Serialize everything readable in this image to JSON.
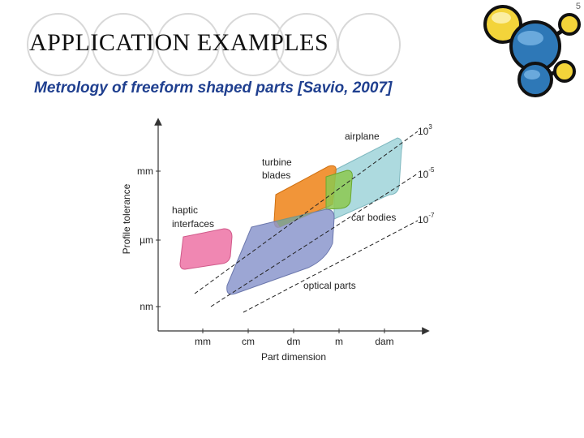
{
  "slide": {
    "number": "5",
    "title": "APPLICATION EXAMPLES",
    "subtitle": "Metrology of freeform shaped parts [Savio, 2007]"
  },
  "figure": {
    "ylabel": "Profile tolerance",
    "xlabel": "Part dimension",
    "yticks": [
      "mm",
      "µm",
      "nm"
    ],
    "xticks": [
      "mm",
      "cm",
      "dm",
      "m",
      "dam"
    ],
    "lines": [
      {
        "base": "10",
        "exp": "3"
      },
      {
        "base": "10",
        "exp": "-5"
      },
      {
        "base": "10",
        "exp": "-7"
      }
    ],
    "regions": [
      {
        "name": "airplane",
        "label": "airplane",
        "color": "#9fd3d9"
      },
      {
        "name": "turbine-blades",
        "label_line1": "turbine",
        "label_line2": "blades",
        "color": "#f08a24"
      },
      {
        "name": "car-bodies",
        "label": "car bodies",
        "color": "#8cc850"
      },
      {
        "name": "haptic-interfaces",
        "label_line1": "haptic",
        "label_line2": "interfaces",
        "color": "#ee7aaa"
      },
      {
        "name": "optical-parts",
        "label": "optical parts",
        "color": "#8b97cc"
      }
    ]
  }
}
